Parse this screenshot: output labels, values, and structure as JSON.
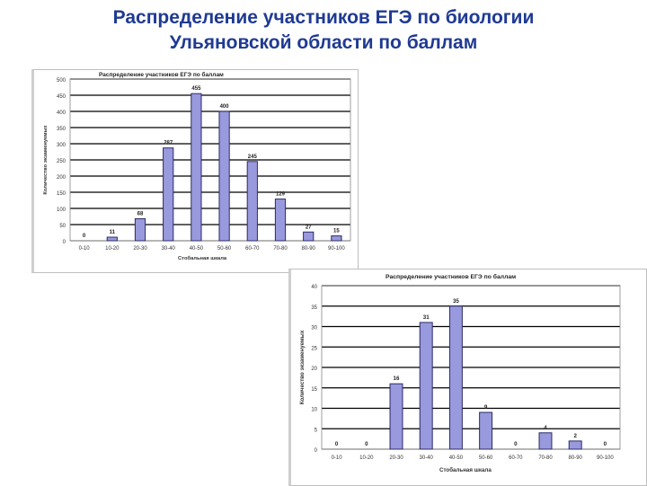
{
  "slide": {
    "title_line1": "Распределение участников ЕГЭ по биологии",
    "title_line2": "Ульяновской области по баллам"
  },
  "colors": {
    "bar_fill": "#9999dd",
    "bar_stroke": "#2b2b66",
    "grid": "#000000",
    "title": "#1f3a93"
  },
  "chart_data": [
    {
      "type": "bar",
      "title": "Распределение участников ЕГЭ по баллам",
      "xlabel": "Стобальная шкала",
      "ylabel": "Количество экзаменуемых",
      "categories": [
        "0-10",
        "10-20",
        "20-30",
        "30-40",
        "40-50",
        "50-60",
        "60-70",
        "70-80",
        "80-90",
        "90-100"
      ],
      "values": [
        0,
        11,
        68,
        287,
        455,
        400,
        245,
        129,
        27,
        15
      ],
      "ylim": [
        0,
        500
      ],
      "ytick_step": 50,
      "grid": true,
      "data_labels": true
    },
    {
      "type": "bar",
      "title": "Распределение участников ЕГЭ по баллам",
      "xlabel": "Стобальная шкала",
      "ylabel": "Количество экзаменуемых",
      "categories": [
        "0-10",
        "10-20",
        "20-30",
        "30-40",
        "40-50",
        "50-60",
        "60-70",
        "70-80",
        "80-90",
        "90-100"
      ],
      "values": [
        0,
        0,
        16,
        31,
        35,
        9,
        0,
        4,
        2,
        0
      ],
      "ylim": [
        0,
        40
      ],
      "ytick_step": 5,
      "grid": true,
      "data_labels": true
    }
  ]
}
